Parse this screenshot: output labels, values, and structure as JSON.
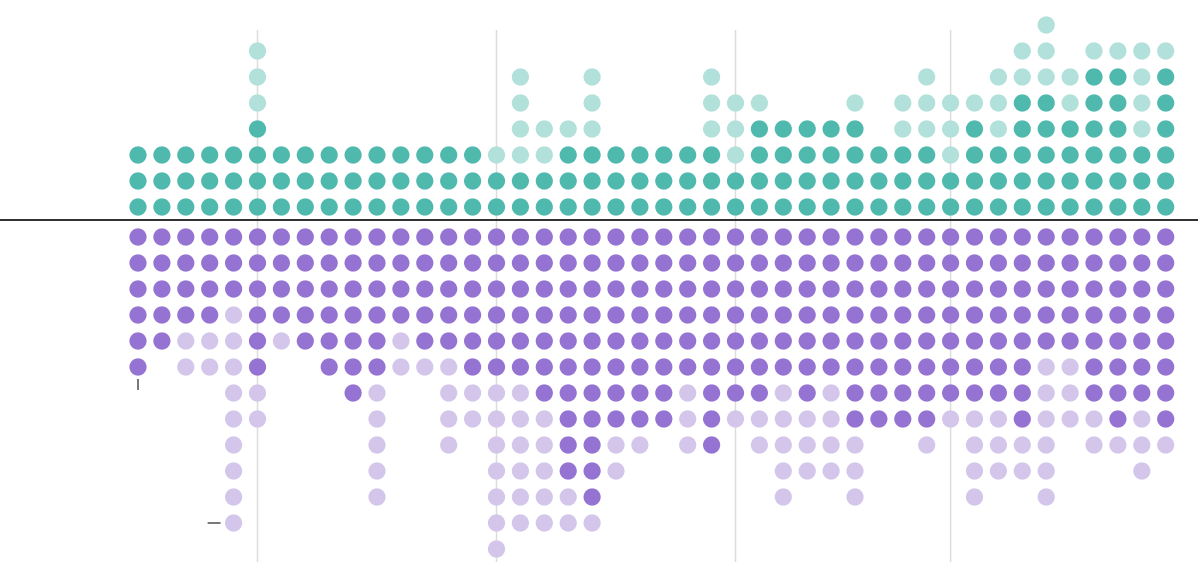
{
  "colors": {
    "background": "#ffffff",
    "teal_dark": "#4fb9ae",
    "teal_light": "#b2e0da",
    "purple_dark": "#9473d2",
    "purple_light": "#d4c6ea",
    "axis_line": "#333333",
    "gridline": "#dddddd"
  },
  "chart_data": {
    "type": "dot-matrix",
    "title": "",
    "xlabel": "",
    "ylabel": "",
    "grid": true,
    "dot_unit": 1,
    "legend": "none",
    "columns": [
      {
        "up_dark": 3,
        "up_light": 0,
        "down_dark": 6,
        "down_light": 0,
        "marks": [
          "tick-below"
        ]
      },
      {
        "up_dark": 3,
        "up_light": 0,
        "down_dark": 5,
        "down_light": 0
      },
      {
        "up_dark": 3,
        "up_light": 0,
        "down_dark": 4,
        "down_light": 2
      },
      {
        "up_dark": 3,
        "up_light": 0,
        "down_dark": 4,
        "down_light": 2
      },
      {
        "up_dark": 3,
        "up_light": 0,
        "down_dark": 3,
        "down_light": 9,
        "marks": [
          "dash-left"
        ]
      },
      {
        "up_dark": 4,
        "up_light": 3,
        "down_dark": 6,
        "down_light": 2,
        "gridline": true
      },
      {
        "up_dark": 3,
        "up_light": 0,
        "down_dark": 4,
        "down_light": 1
      },
      {
        "up_dark": 3,
        "up_light": 0,
        "down_dark": 5,
        "down_light": 0
      },
      {
        "up_dark": 3,
        "up_light": 0,
        "down_dark": 6,
        "down_light": 0
      },
      {
        "up_dark": 3,
        "up_light": 0,
        "down_dark": 7,
        "down_light": 0
      },
      {
        "up_dark": 3,
        "up_light": 0,
        "down_dark": 6,
        "down_light": 5
      },
      {
        "up_dark": 3,
        "up_light": 0,
        "down_dark": 4,
        "down_light": 2
      },
      {
        "up_dark": 3,
        "up_light": 0,
        "down_dark": 5,
        "down_light": 1
      },
      {
        "up_dark": 3,
        "up_light": 0,
        "down_dark": 5,
        "down_light": 4
      },
      {
        "up_dark": 3,
        "up_light": 0,
        "down_dark": 6,
        "down_light": 2
      },
      {
        "up_dark": 2,
        "up_light": 1,
        "down_dark": 6,
        "down_light": 7,
        "gridline": true
      },
      {
        "up_dark": 2,
        "up_light": 4,
        "down_dark": 6,
        "down_light": 6
      },
      {
        "up_dark": 2,
        "up_light": 2,
        "down_dark": 7,
        "down_light": 5
      },
      {
        "up_dark": 3,
        "up_light": 1,
        "down_dark": 10,
        "down_light": 2
      },
      {
        "up_dark": 3,
        "up_light": 3,
        "down_dark": 11,
        "down_light": 1
      },
      {
        "up_dark": 3,
        "up_light": 0,
        "down_dark": 8,
        "down_light": 2
      },
      {
        "up_dark": 3,
        "up_light": 0,
        "down_dark": 8,
        "down_light": 1
      },
      {
        "up_dark": 3,
        "up_light": 0,
        "down_dark": 8,
        "down_light": 0
      },
      {
        "up_dark": 3,
        "up_light": 0,
        "down_dark": 6,
        "down_light": 3
      },
      {
        "up_dark": 3,
        "up_light": 3,
        "down_dark": 9,
        "down_light": 0
      },
      {
        "up_dark": 2,
        "up_light": 3,
        "down_dark": 7,
        "down_light": 1,
        "gridline": true
      },
      {
        "up_dark": 4,
        "up_light": 1,
        "down_dark": 7,
        "down_light": 2
      },
      {
        "up_dark": 4,
        "up_light": 0,
        "down_dark": 6,
        "down_light": 5
      },
      {
        "up_dark": 4,
        "up_light": 0,
        "down_dark": 7,
        "down_light": 3
      },
      {
        "up_dark": 4,
        "up_light": 0,
        "down_dark": 6,
        "down_light": 4
      },
      {
        "up_dark": 4,
        "up_light": 1,
        "down_dark": 8,
        "down_light": 3
      },
      {
        "up_dark": 3,
        "up_light": 0,
        "down_dark": 8,
        "down_light": 0
      },
      {
        "up_dark": 3,
        "up_light": 2,
        "down_dark": 8,
        "down_light": 0
      },
      {
        "up_dark": 3,
        "up_light": 3,
        "down_dark": 8,
        "down_light": 1
      },
      {
        "up_dark": 2,
        "up_light": 3,
        "down_dark": 7,
        "down_light": 1,
        "gridline": true
      },
      {
        "up_dark": 4,
        "up_light": 1,
        "down_dark": 7,
        "down_light": 4
      },
      {
        "up_dark": 3,
        "up_light": 3,
        "down_dark": 7,
        "down_light": 3
      },
      {
        "up_dark": 5,
        "up_light": 2,
        "down_dark": 8,
        "down_light": 2
      },
      {
        "up_dark": 5,
        "up_light": 3,
        "down_dark": 5,
        "down_light": 6
      },
      {
        "up_dark": 4,
        "up_light": 2,
        "down_dark": 5,
        "down_light": 3
      },
      {
        "up_dark": 6,
        "up_light": 1,
        "down_dark": 7,
        "down_light": 2
      },
      {
        "up_dark": 6,
        "up_light": 1,
        "down_dark": 8,
        "down_light": 1
      },
      {
        "up_dark": 3,
        "up_light": 4,
        "down_dark": 7,
        "down_light": 3
      },
      {
        "up_dark": 6,
        "up_light": 1,
        "down_dark": 8,
        "down_light": 1
      }
    ]
  }
}
